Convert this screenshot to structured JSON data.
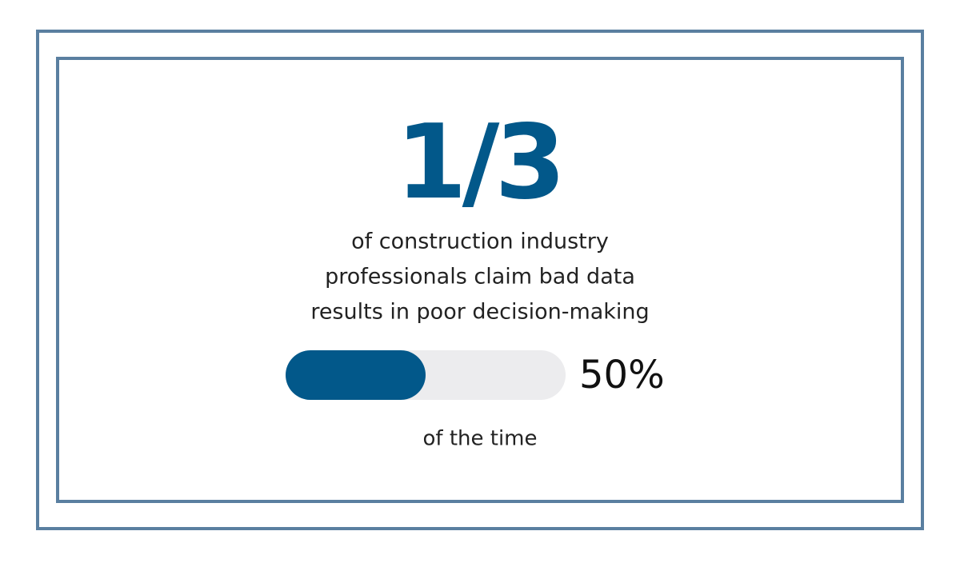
{
  "headline": "1/3",
  "description": [
    "of construction industry",
    "professionals claim bad data",
    "results in poor decision-making"
  ],
  "progress": {
    "value": 50,
    "value_label": "50%",
    "color": "#02588a"
  },
  "caption": "of the time"
}
